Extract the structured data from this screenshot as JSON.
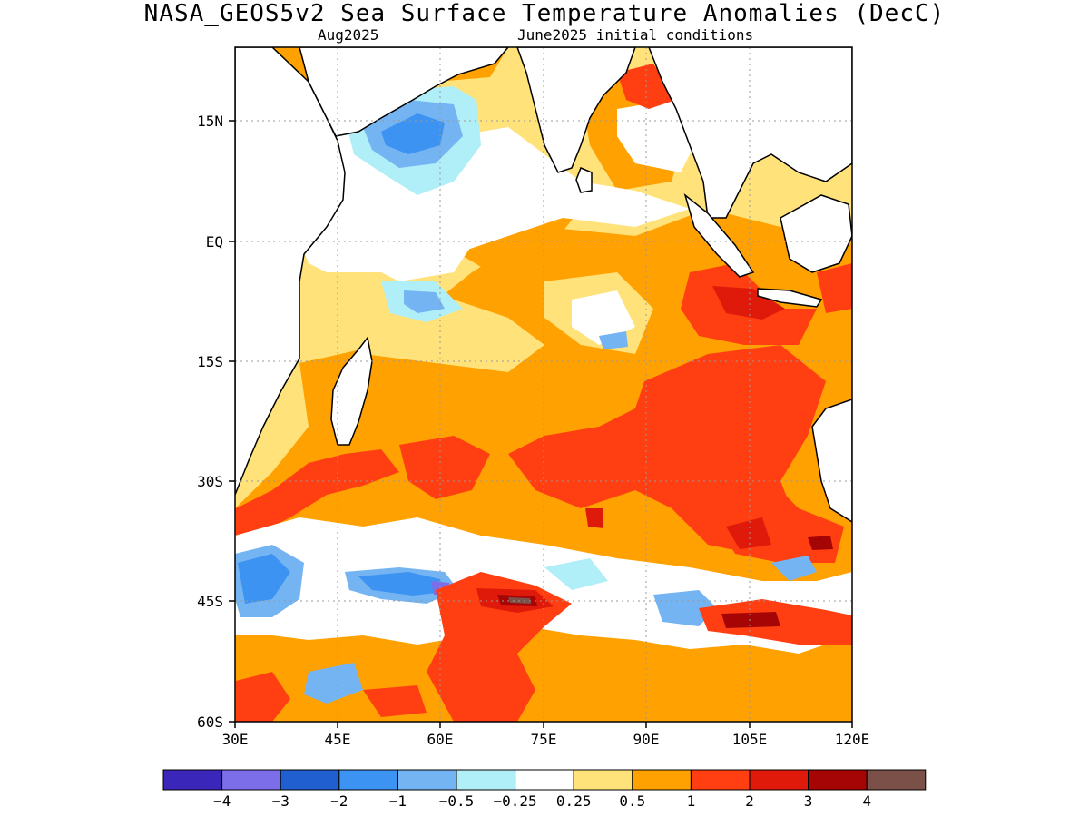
{
  "title": "NASA_GEOS5v2 Sea Surface Temperature Anomalies (DecC)",
  "subtitle_left": "Aug2025",
  "subtitle_right": "June2025 initial conditions",
  "lat_labels": [
    "15N",
    "EQ",
    "15S",
    "30S",
    "45S",
    "60S"
  ],
  "lon_labels": [
    "30E",
    "45E",
    "60E",
    "75E",
    "90E",
    "105E",
    "120E"
  ],
  "colorbar": {
    "colors": [
      "#3a26b8",
      "#7b6ee8",
      "#1f5fd0",
      "#3c93f2",
      "#74b4f2",
      "#b0eef8",
      "#ffffff",
      "#ffe27a",
      "#ffa100",
      "#ff3f12",
      "#e01a0a",
      "#a60505",
      "#7a5048"
    ],
    "labels": [
      "−4",
      "−3",
      "−2",
      "−1",
      "−0.5",
      "−0.25",
      "0.25",
      "0.5",
      "1",
      "2",
      "3",
      "4"
    ]
  }
}
